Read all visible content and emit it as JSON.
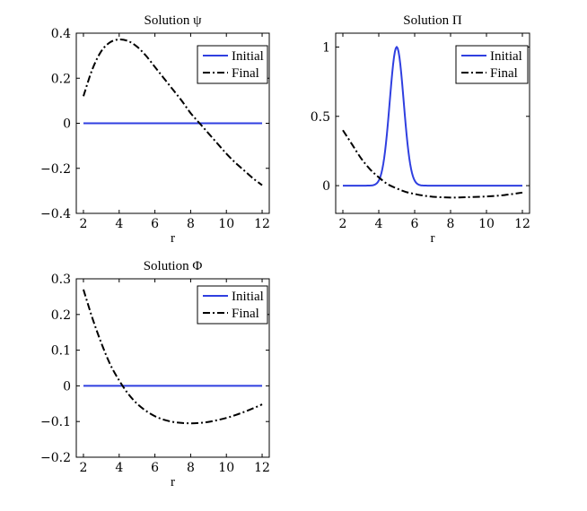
{
  "chart_data": [
    {
      "type": "line",
      "title": "Solution ψ",
      "xlabel": "r",
      "ylabel": "",
      "xlim": [
        1.6,
        12.4
      ],
      "ylim": [
        -0.4,
        0.4
      ],
      "xticks": [
        2,
        4,
        6,
        8,
        10,
        12
      ],
      "yticks": [
        -0.4,
        -0.2,
        0,
        0.2,
        0.4
      ],
      "ytick_labels": [
        "−0.4",
        "−0.2",
        "0",
        "0.2",
        "0.4"
      ],
      "legend": {
        "placement": "top-right",
        "entries": [
          "Initial",
          "Final"
        ]
      },
      "grid": false,
      "series": [
        {
          "name": "Initial",
          "style": "solid",
          "color": "#2f3fe0",
          "x": [
            2,
            12
          ],
          "y": [
            0,
            0
          ]
        },
        {
          "name": "Final",
          "style": "dash-dot",
          "color": "#000000",
          "x": [
            2,
            2.5,
            3,
            3.5,
            4,
            4.5,
            5,
            5.5,
            6,
            6.5,
            7,
            7.5,
            8,
            8.5,
            9,
            9.5,
            10,
            10.5,
            11,
            11.5,
            12
          ],
          "y": [
            0.12,
            0.24,
            0.32,
            0.36,
            0.372,
            0.365,
            0.34,
            0.3,
            0.25,
            0.2,
            0.15,
            0.1,
            0.045,
            0,
            -0.045,
            -0.09,
            -0.135,
            -0.175,
            -0.21,
            -0.245,
            -0.275
          ]
        }
      ]
    },
    {
      "type": "line",
      "title": "Solution Π",
      "xlabel": "r",
      "ylabel": "",
      "xlim": [
        1.6,
        12.4
      ],
      "ylim": [
        -0.2,
        1.1
      ],
      "xticks": [
        2,
        4,
        6,
        8,
        10,
        12
      ],
      "yticks": [
        0,
        0.5,
        1
      ],
      "ytick_labels": [
        "0",
        "0.5",
        "1"
      ],
      "legend": {
        "placement": "top-right",
        "entries": [
          "Initial",
          "Final"
        ]
      },
      "grid": false,
      "series": [
        {
          "name": "Initial",
          "style": "solid",
          "color": "#2f3fe0",
          "gaussian": {
            "center": 5,
            "width": 0.55,
            "amplitude": 1
          },
          "x": [
            2,
            3,
            4,
            4.5,
            5,
            5.5,
            6,
            7,
            8,
            12
          ],
          "y": [
            0,
            0,
            0.04,
            0.44,
            1,
            0.44,
            0.04,
            0,
            0,
            0
          ]
        },
        {
          "name": "Final",
          "style": "dash-dot",
          "color": "#000000",
          "x": [
            2,
            2.5,
            3,
            3.5,
            4,
            4.5,
            5,
            5.5,
            6,
            6.5,
            7,
            7.5,
            8,
            8.5,
            9,
            10,
            11,
            12
          ],
          "y": [
            0.4,
            0.3,
            0.2,
            0.12,
            0.06,
            0.01,
            -0.02,
            -0.045,
            -0.06,
            -0.072,
            -0.08,
            -0.084,
            -0.086,
            -0.085,
            -0.083,
            -0.078,
            -0.068,
            -0.05
          ]
        }
      ]
    },
    {
      "type": "line",
      "title": "Solution Φ",
      "xlabel": "r",
      "ylabel": "",
      "xlim": [
        1.6,
        12.4
      ],
      "ylim": [
        -0.2,
        0.3
      ],
      "xticks": [
        2,
        4,
        6,
        8,
        10,
        12
      ],
      "yticks": [
        -0.2,
        -0.1,
        0,
        0.1,
        0.2,
        0.3
      ],
      "ytick_labels": [
        "−0.2",
        "−0.1",
        "0",
        "0.1",
        "0.2",
        "0.3"
      ],
      "legend": {
        "placement": "top-right",
        "entries": [
          "Initial",
          "Final"
        ]
      },
      "grid": false,
      "series": [
        {
          "name": "Initial",
          "style": "solid",
          "color": "#2f3fe0",
          "x": [
            2,
            12
          ],
          "y": [
            0,
            0
          ]
        },
        {
          "name": "Final",
          "style": "dash-dot",
          "color": "#000000",
          "x": [
            2,
            2.5,
            3,
            3.5,
            4,
            4.5,
            5,
            5.5,
            6,
            6.5,
            7,
            7.5,
            8,
            8.5,
            9,
            9.5,
            10,
            10.5,
            11,
            11.5,
            12
          ],
          "y": [
            0.27,
            0.19,
            0.12,
            0.06,
            0.015,
            -0.022,
            -0.05,
            -0.07,
            -0.085,
            -0.095,
            -0.101,
            -0.104,
            -0.105,
            -0.104,
            -0.101,
            -0.096,
            -0.09,
            -0.082,
            -0.073,
            -0.063,
            -0.052
          ]
        }
      ]
    }
  ]
}
